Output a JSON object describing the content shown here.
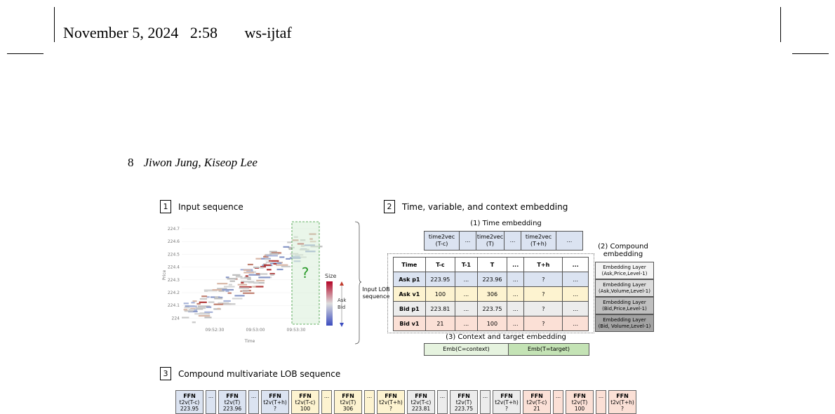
{
  "header": {
    "date": "November 5, 2024",
    "time": "2:58",
    "journal": "ws-ijtaf"
  },
  "running_head": {
    "page": "8",
    "authors": "Jiwon Jung, Kiseop Lee"
  },
  "figure": {
    "sec1": {
      "num": "1",
      "title": "Input sequence"
    },
    "sec2": {
      "num": "2",
      "title": "Time, variable, and context embedding"
    },
    "sec3": {
      "num": "3",
      "title": "Compound multivariate LOB sequence"
    },
    "chart": {
      "yticks": [
        "224.7",
        "224.6",
        "224.5",
        "224.4",
        "224.3",
        "224.2",
        "224.1",
        "224"
      ],
      "xticks": [
        "09:52:30",
        "09:53:00",
        "09:53:30"
      ],
      "ylabel": "Price",
      "xlabel": "Time",
      "question": "?",
      "legend_title": "Size",
      "ask": "Ask",
      "bid": "Bid"
    },
    "input_label": "Input LOB sequence",
    "time_emb_title": "(1) Time embedding",
    "time_boxes": [
      "time2vec (T-c)",
      "...",
      "time2vec (T)",
      "...",
      "time2vec (T+h)",
      "..."
    ],
    "table_header": [
      "Time",
      "T-c",
      "T-1",
      "T",
      "...",
      "T+h",
      "..."
    ],
    "table_rows": [
      {
        "label": "Ask p1",
        "cells": [
          "223.95",
          "...",
          "223.96",
          "...",
          "?",
          "..."
        ],
        "color": "#dbe3f1"
      },
      {
        "label": "Ask v1",
        "cells": [
          "100",
          "...",
          "306",
          "...",
          "?",
          "..."
        ],
        "color": "#fdf3d0"
      },
      {
        "label": "Bid p1",
        "cells": [
          "223.81",
          "...",
          "223.75",
          "...",
          "?",
          "..."
        ],
        "color": "#ececec"
      },
      {
        "label": "Bid v1",
        "cells": [
          "21",
          "...",
          "100",
          "...",
          "?",
          "..."
        ],
        "color": "#fbe0d6"
      }
    ],
    "compound_title": "(2) Compound embedding",
    "compound_layers": [
      {
        "line1": "Embedding Layer",
        "line2": "(Ask,Price,Level-1)",
        "color": "#f4f4f4"
      },
      {
        "line1": "Embedding Layer",
        "line2": "(Ask,Volume,Level-1)",
        "color": "#dcdcdc"
      },
      {
        "line1": "Embedding Layer",
        "line2": "(Bid,Price,Level-1)",
        "color": "#bfbfbf"
      },
      {
        "line1": "Embedding Layer",
        "line2": "(Bid, Volume,Level-1)",
        "color": "#a3a3a3"
      }
    ],
    "context_title": "(3) Context and target embedding",
    "emb_context": "Emb(C=context)",
    "emb_target": "Emb(T=target)",
    "ffn_items": [
      {
        "t": "FFN",
        "a": "t2v(T-c)",
        "v": "223.95",
        "color": "#dbe3f1"
      },
      {
        "t": "...",
        "a": "",
        "v": "",
        "color": "#dbe3f1"
      },
      {
        "t": "FFN",
        "a": "t2v(T)",
        "v": "223.96",
        "color": "#dbe3f1"
      },
      {
        "t": "...",
        "a": "",
        "v": "",
        "color": "#dbe3f1"
      },
      {
        "t": "FFN",
        "a": "t2v(T+h)",
        "v": "?",
        "color": "#dbe3f1"
      },
      {
        "t": "FFN",
        "a": "t2v(T-c)",
        "v": "100",
        "color": "#fdf3d0"
      },
      {
        "t": "...",
        "a": "",
        "v": "",
        "color": "#fdf3d0"
      },
      {
        "t": "FFN",
        "a": "t2v(T)",
        "v": "306",
        "color": "#fdf3d0"
      },
      {
        "t": "...",
        "a": "",
        "v": "",
        "color": "#fdf3d0"
      },
      {
        "t": "FFN",
        "a": "t2v(T+h)",
        "v": "?",
        "color": "#fdf3d0"
      },
      {
        "t": "FFN",
        "a": "t2v(T-c)",
        "v": "223.81",
        "color": "#ececec"
      },
      {
        "t": "...",
        "a": "",
        "v": "",
        "color": "#ececec"
      },
      {
        "t": "FFN",
        "a": "t2v(T)",
        "v": "223.75",
        "color": "#ececec"
      },
      {
        "t": "...",
        "a": "",
        "v": "",
        "color": "#ececec"
      },
      {
        "t": "FFN",
        "a": "t2v(T+h)",
        "v": "?",
        "color": "#ececec"
      },
      {
        "t": "FFN",
        "a": "t2v(T-c)",
        "v": "21",
        "color": "#fbe0d6"
      },
      {
        "t": "...",
        "a": "",
        "v": "",
        "color": "#fbe0d6"
      },
      {
        "t": "FFN",
        "a": "t2v(T)",
        "v": "100",
        "color": "#fbe0d6"
      },
      {
        "t": "...",
        "a": "",
        "v": "",
        "color": "#fbe0d6"
      },
      {
        "t": "FFN",
        "a": "t2v(T+h)",
        "v": "?",
        "color": "#fbe0d6"
      }
    ]
  }
}
